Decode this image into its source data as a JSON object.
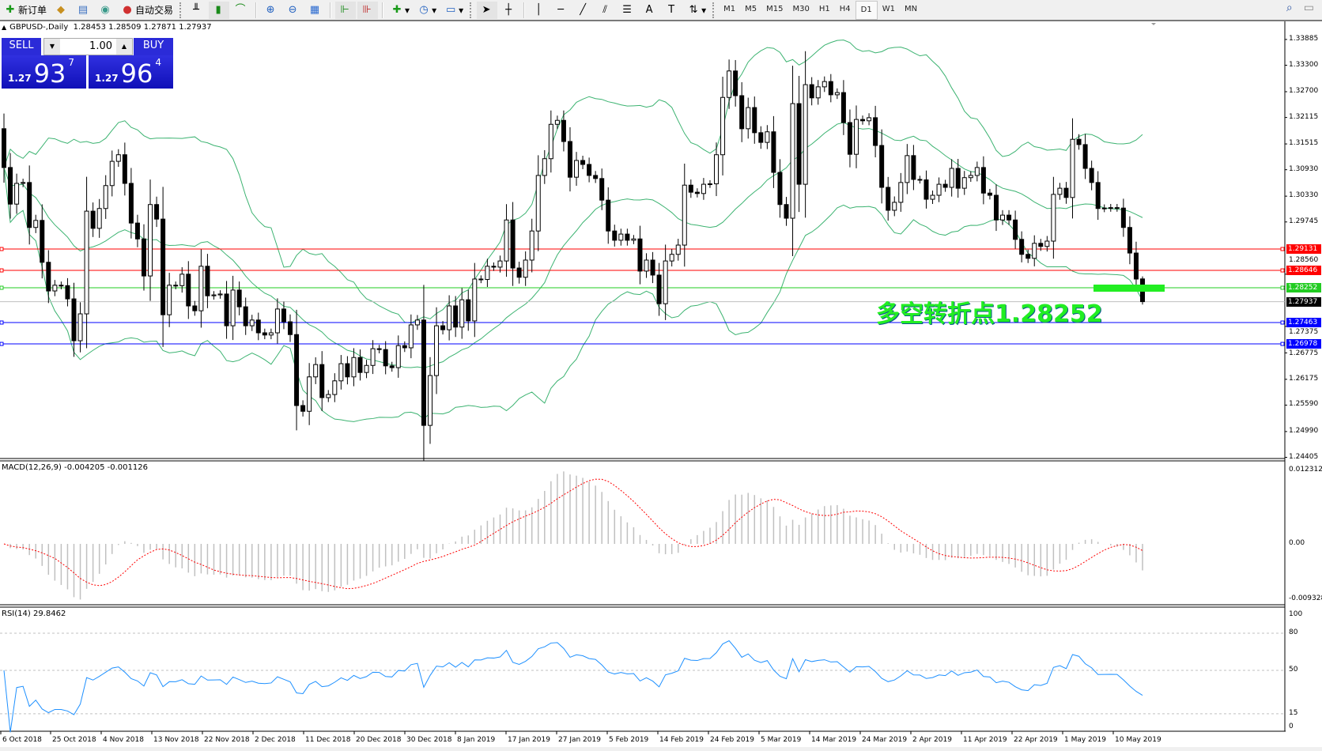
{
  "toolbar": {
    "new_order": "新订单",
    "auto_trading": "自动交易",
    "timeframes": [
      "M1",
      "M5",
      "M15",
      "M30",
      "H1",
      "H4",
      "D1",
      "W1",
      "MN"
    ],
    "active_timeframe": "D1"
  },
  "header": {
    "symbol": "GBPUSD-,Daily",
    "ohlc": "1.28453 1.28509 1.27871 1.27937"
  },
  "trade_panel": {
    "sell_label": "SELL",
    "buy_label": "BUY",
    "lot": "1.00",
    "sell_price": {
      "prefix": "1.27",
      "big": "93",
      "sup": "7"
    },
    "buy_price": {
      "prefix": "1.27",
      "big": "96",
      "sup": "4"
    },
    "panel_color": "#2020d0"
  },
  "annotation": {
    "text": "多空转折点1.28252",
    "color": "#22ee22"
  },
  "macd_label": "MACD(12,26,9) -0.004205 -0.001126",
  "rsi_label": "RSI(14) 29.8462",
  "chart_data": {
    "type": "candlestick",
    "symbol": "GBPUSD",
    "timeframe": "Daily",
    "first_open": 1.3186,
    "last_bar": {
      "open": 1.28453,
      "high": 1.28509,
      "low": 1.27871,
      "close": 1.27937
    },
    "closes": [
      1.3098,
      1.3015,
      1.3062,
      1.3064,
      1.2962,
      1.2978,
      1.2883,
      1.2818,
      1.2831,
      1.283,
      1.28,
      1.2705,
      1.2766,
      1.2999,
      1.296,
      1.3005,
      1.3057,
      1.3112,
      1.3127,
      1.3062,
      1.2972,
      1.2936,
      1.2852,
      1.3014,
      1.2981,
      1.2764,
      1.2831,
      1.283,
      1.2856,
      1.2784,
      1.2773,
      1.2874,
      1.2807,
      1.2809,
      1.2811,
      1.2739,
      1.282,
      1.2782,
      1.2739,
      1.2752,
      1.2723,
      1.2718,
      1.2723,
      1.2777,
      1.2748,
      1.2719,
      1.2558,
      1.2545,
      1.2623,
      1.2651,
      1.2576,
      1.2583,
      1.2614,
      1.2653,
      1.2623,
      1.2667,
      1.2633,
      1.2649,
      1.2687,
      1.2685,
      1.2648,
      1.2644,
      1.2694,
      1.2689,
      1.2741,
      1.2752,
      1.2513,
      1.2626,
      1.2739,
      1.273,
      1.2784,
      1.2736,
      1.2798,
      1.275,
      1.2845,
      1.2844,
      1.2874,
      1.2872,
      1.2886,
      1.2979,
      1.287,
      1.2849,
      1.2888,
      1.2954,
      1.308,
      1.3118,
      1.3196,
      1.3205,
      1.3157,
      1.3076,
      1.3114,
      1.3105,
      1.308,
      1.3073,
      1.3024,
      1.2954,
      1.2933,
      1.2947,
      1.2933,
      1.2936,
      1.2863,
      1.2888,
      1.2854,
      1.2789,
      1.2886,
      1.2901,
      1.2922,
      1.3058,
      1.3042,
      1.3039,
      1.306,
      1.3061,
      1.3127,
      1.3257,
      1.3317,
      1.3261,
      1.3186,
      1.3234,
      1.3177,
      1.3155,
      1.3179,
      1.3087,
      1.3014,
      1.2983,
      1.3243,
      1.306,
      1.3286,
      1.3256,
      1.3281,
      1.3293,
      1.3263,
      1.3268,
      1.32,
      1.3128,
      1.3207,
      1.3204,
      1.3211,
      1.3148,
      1.3053,
      1.3001,
      1.3019,
      1.3064,
      1.3125,
      1.3071,
      1.307,
      1.3026,
      1.3035,
      1.306,
      1.3053,
      1.3096,
      1.3051,
      1.3075,
      1.308,
      1.3098,
      1.304,
      1.3035,
      1.2979,
      1.299,
      1.2979,
      1.2935,
      1.2901,
      1.2892,
      1.2926,
      1.2919,
      1.2931,
      1.3037,
      1.3051,
      1.303,
      1.3162,
      1.315,
      1.3096,
      1.3064,
      1.3005,
      1.3006,
      1.3007,
      1.3006,
      1.2962,
      1.2904,
      1.2845,
      1.27937
    ],
    "price_range": [
      1.24405,
      1.33885
    ],
    "price_ticks": [
      "1.33885",
      "1.33300",
      "1.32700",
      "1.32115",
      "1.31515",
      "1.30930",
      "1.30330",
      "1.29745",
      "1.28560",
      "1.27375",
      "1.26775",
      "1.26175",
      "1.25590",
      "1.24990",
      "1.24405"
    ],
    "date_ticks": [
      "6 Oct 2018",
      "25 Oct 2018",
      "4 Nov 2018",
      "13 Nov 2018",
      "22 Nov 2018",
      "2 Dec 2018",
      "11 Dec 2018",
      "20 Dec 2018",
      "30 Dec 2018",
      "8 Jan 2019",
      "17 Jan 2019",
      "27 Jan 2019",
      "5 Feb 2019",
      "14 Feb 2019",
      "24 Feb 2019",
      "5 Mar 2019",
      "14 Mar 2019",
      "24 Mar 2019",
      "2 Apr 2019",
      "11 Apr 2019",
      "22 Apr 2019",
      "1 May 2019",
      "10 May 2019"
    ],
    "bollinger": {
      "period": 20,
      "deviation": 2,
      "color": "#3cb371"
    },
    "levels": [
      {
        "price": "1.29131",
        "color": "#ff0000"
      },
      {
        "price": "1.28646",
        "color": "#ff0000"
      },
      {
        "price": "1.28252",
        "color": "#22cc22"
      },
      {
        "price": "1.27937",
        "color": "#000000",
        "line_color": "#c0c0c0"
      },
      {
        "price": "1.27463",
        "color": "#0000ff"
      },
      {
        "price": "1.26978",
        "color": "#0000ff"
      }
    ],
    "macd": {
      "fast": 12,
      "slow": 26,
      "signal": 9,
      "range": [
        -0.009328,
        0.012312
      ],
      "ticks": [
        "0.012312",
        "0.00",
        "-0.009328"
      ],
      "hist_color": "#c0c0c0",
      "signal_color": "#ff0000"
    },
    "rsi": {
      "period": 14,
      "levels": [
        80,
        50,
        15
      ],
      "ticks": [
        "100",
        "80",
        "50",
        "15",
        "0"
      ],
      "color": "#1e90ff"
    }
  }
}
